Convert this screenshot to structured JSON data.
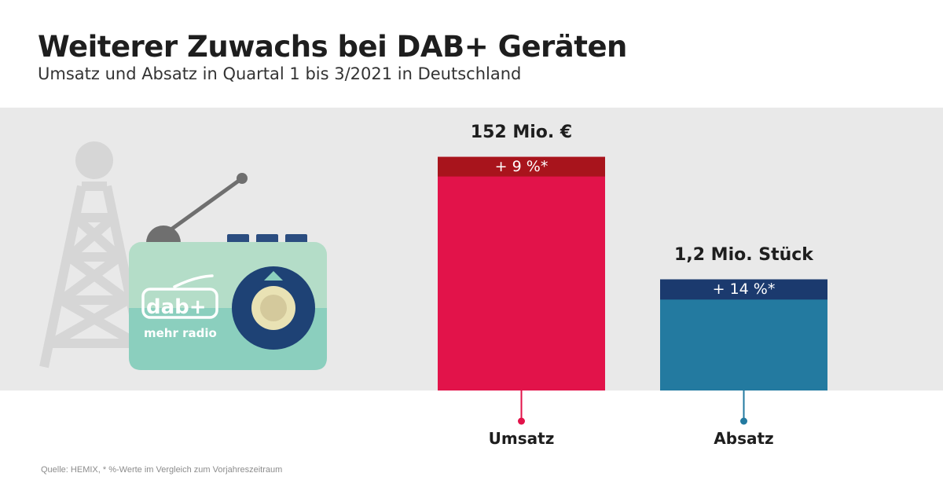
{
  "header": {
    "title": "Weiterer Zuwachs bei DAB+ Geräten",
    "subtitle": "Umsatz und Absatz in Quartal 1 bis 3/2021 in Deutschland"
  },
  "logo": {
    "text": "dab+",
    "tagline": "mehr radio"
  },
  "footer": {
    "source": "Quelle: HEMIX, * %-Werte im Vergleich zum Vorjahreszeitraum"
  },
  "chart_data": {
    "type": "bar",
    "categories": [
      "Umsatz",
      "Absatz"
    ],
    "series": [
      {
        "values": [
          152,
          1.2
        ],
        "value_labels": [
          "152 Mio. €",
          "1,2 Mio. Stück"
        ],
        "change_labels": [
          "+ 9 %*",
          "+ 14 %*"
        ],
        "change_percent": [
          9,
          14
        ]
      }
    ],
    "colors": {
      "Umsatz": "#e2134a",
      "Umsatz_change": "#a8141c",
      "Absatz": "#237aa0",
      "Absatz_change": "#1b3a6e"
    },
    "bar_fraction_of_band": [
      0.826,
      0.393
    ],
    "change_fraction_of_bar": [
      0.084,
      0.182
    ]
  }
}
